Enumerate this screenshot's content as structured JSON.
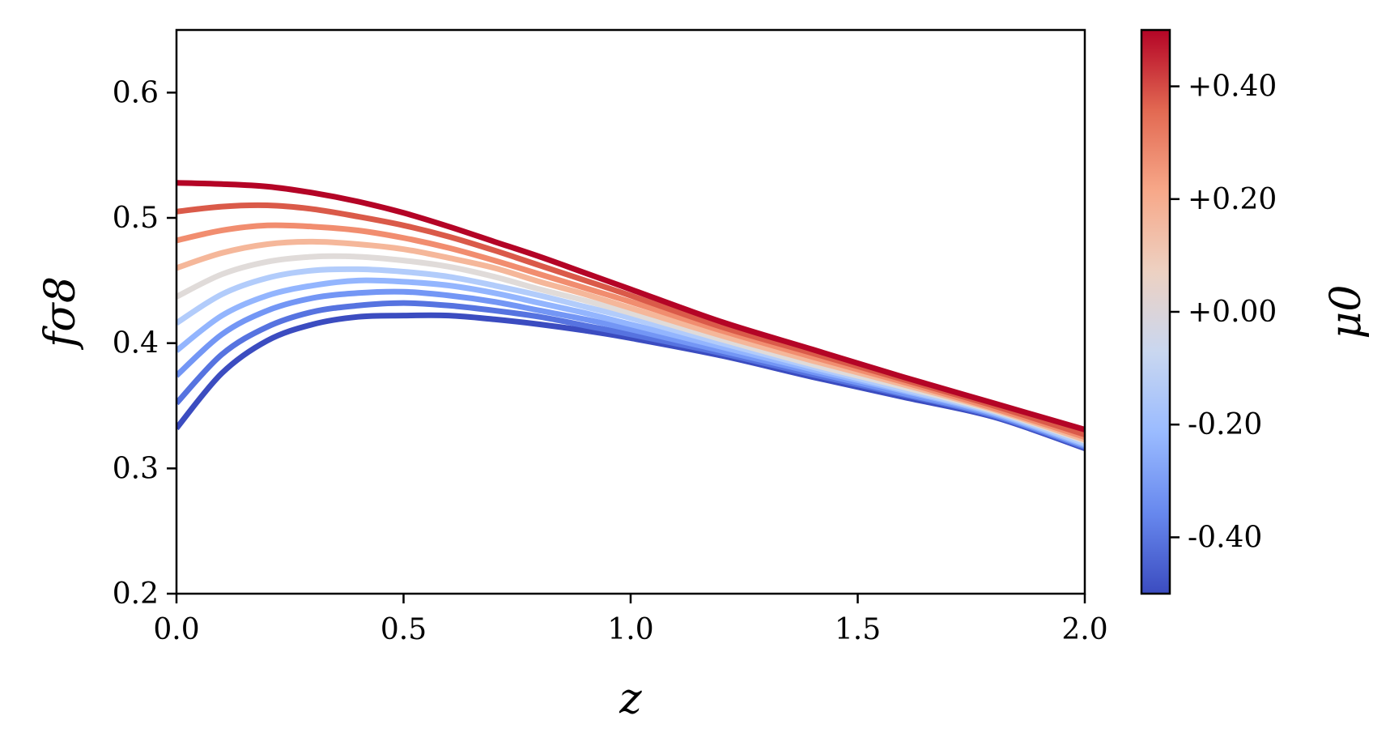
{
  "chart_data": {
    "type": "line",
    "xlabel": "z",
    "ylabel": "fσ8",
    "xlim": [
      0.0,
      2.0
    ],
    "ylim": [
      0.2,
      0.65
    ],
    "x_ticks": [
      0.0,
      0.5,
      1.0,
      1.5,
      2.0
    ],
    "x_tick_labels": [
      "0.0",
      "0.5",
      "1.0",
      "1.5",
      "2.0"
    ],
    "y_ticks": [
      0.2,
      0.3,
      0.4,
      0.5,
      0.6
    ],
    "y_tick_labels": [
      "0.2",
      "0.3",
      "0.4",
      "0.5",
      "0.6"
    ],
    "grid": false,
    "x": [
      0.0,
      0.1,
      0.2,
      0.3,
      0.4,
      0.5,
      0.6,
      0.7,
      0.8,
      0.9,
      1.0,
      1.2,
      1.4,
      1.6,
      1.8,
      2.0
    ],
    "series": [
      {
        "mu0": -0.5,
        "color": "#3b4cc0",
        "values": [
          0.332,
          0.376,
          0.402,
          0.415,
          0.421,
          0.422,
          0.422,
          0.419,
          0.415,
          0.41,
          0.404,
          0.39,
          0.373,
          0.357,
          0.341,
          0.316
        ]
      },
      {
        "mu0": -0.4,
        "color": "#5673e0",
        "values": [
          0.352,
          0.391,
          0.413,
          0.425,
          0.43,
          0.432,
          0.43,
          0.426,
          0.421,
          0.414,
          0.407,
          0.392,
          0.375,
          0.359,
          0.342,
          0.317
        ]
      },
      {
        "mu0": -0.3,
        "color": "#7396f5",
        "values": [
          0.374,
          0.407,
          0.426,
          0.436,
          0.44,
          0.441,
          0.438,
          0.433,
          0.426,
          0.419,
          0.411,
          0.394,
          0.377,
          0.36,
          0.343,
          0.318
        ]
      },
      {
        "mu0": -0.2,
        "color": "#93b5fe",
        "values": [
          0.394,
          0.422,
          0.438,
          0.446,
          0.45,
          0.449,
          0.446,
          0.44,
          0.432,
          0.424,
          0.415,
          0.397,
          0.379,
          0.362,
          0.344,
          0.319
        ]
      },
      {
        "mu0": -0.1,
        "color": "#b2ccfb",
        "values": [
          0.416,
          0.439,
          0.452,
          0.458,
          0.459,
          0.457,
          0.453,
          0.446,
          0.438,
          0.429,
          0.42,
          0.4,
          0.381,
          0.363,
          0.345,
          0.32
        ]
      },
      {
        "mu0": 0.0,
        "color": "#e0dbd9",
        "values": [
          0.437,
          0.455,
          0.465,
          0.469,
          0.469,
          0.466,
          0.461,
          0.453,
          0.443,
          0.434,
          0.424,
          0.403,
          0.383,
          0.365,
          0.346,
          0.322
        ]
      },
      {
        "mu0": 0.1,
        "color": "#f5b79a",
        "values": [
          0.46,
          0.472,
          0.479,
          0.481,
          0.479,
          0.475,
          0.468,
          0.46,
          0.449,
          0.439,
          0.428,
          0.406,
          0.386,
          0.367,
          0.347,
          0.323
        ]
      },
      {
        "mu0": 0.2,
        "color": "#f18d6f",
        "values": [
          0.482,
          0.49,
          0.494,
          0.493,
          0.49,
          0.484,
          0.476,
          0.466,
          0.455,
          0.444,
          0.433,
          0.41,
          0.389,
          0.369,
          0.348,
          0.325
        ]
      },
      {
        "mu0": 0.3,
        "color": "#da5a49",
        "values": [
          0.505,
          0.509,
          0.51,
          0.507,
          0.501,
          0.494,
          0.485,
          0.474,
          0.462,
          0.45,
          0.438,
          0.413,
          0.392,
          0.371,
          0.35,
          0.327
        ]
      },
      {
        "mu0": 0.4,
        "color": "#b40426",
        "values": [
          0.528,
          0.527,
          0.525,
          0.52,
          0.513,
          0.504,
          0.493,
          0.481,
          0.469,
          0.456,
          0.443,
          0.417,
          0.395,
          0.373,
          0.352,
          0.331
        ]
      }
    ],
    "colorbar": {
      "label": "μ0",
      "range": [
        -0.5,
        0.5
      ],
      "ticks": [
        -0.4,
        -0.2,
        0.0,
        0.2,
        0.4
      ],
      "tick_labels": [
        "-0.40",
        "-0.20",
        "+0.00",
        "+0.20",
        "+0.40"
      ],
      "colormap": [
        "#3b4cc0",
        "#6788ee",
        "#9abbff",
        "#c9d7f0",
        "#edd1c2",
        "#f7a889",
        "#e26952",
        "#b40426"
      ]
    }
  }
}
